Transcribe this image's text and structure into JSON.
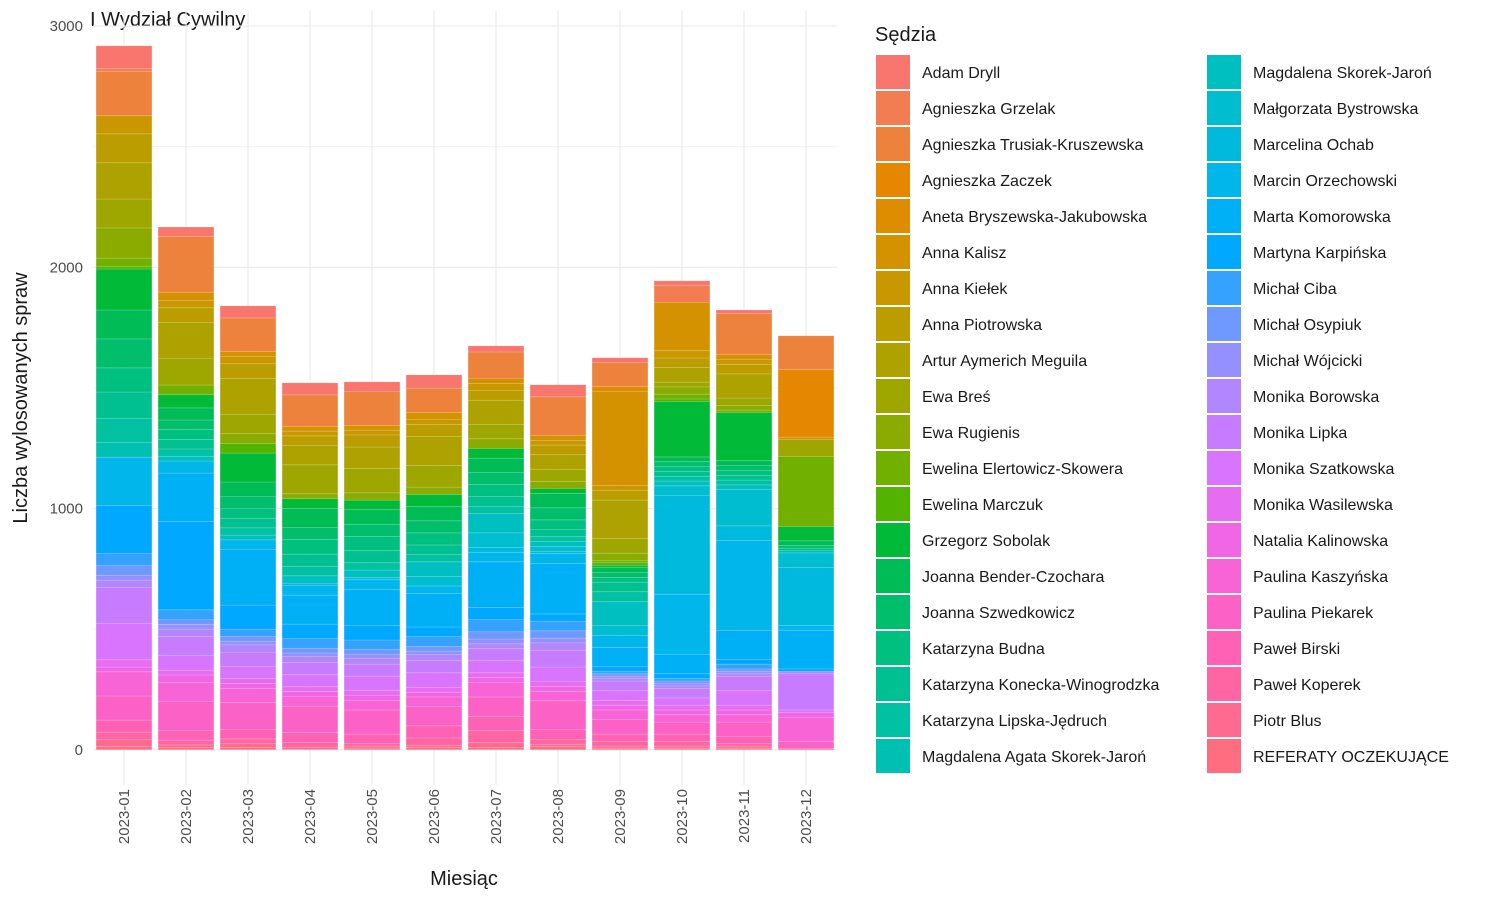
{
  "chart_data": {
    "type": "bar",
    "stacked": true,
    "title": "I Wydział Cywilny",
    "x_label": "Miesiąc",
    "y_label": "Liczba wylosowanych spraw",
    "legend_title": "Sędzia",
    "legend": "right",
    "grid": true,
    "ylim": [
      -146,
      3064
    ],
    "yticks": [
      0,
      1000,
      2000,
      3000
    ],
    "categories": [
      "2023-01",
      "2023-02",
      "2023-03",
      "2023-04",
      "2023-05",
      "2023-06",
      "2023-07",
      "2023-08",
      "2023-09",
      "2023-10",
      "2023-11",
      "2023-12"
    ],
    "series": [
      {
        "name": "Adam Dryll",
        "color": "#F8766D",
        "values": [
          95,
          40,
          50,
          50,
          40,
          55,
          25,
          50,
          20,
          20,
          15,
          0
        ]
      },
      {
        "name": "Agnieszka Grzelak",
        "color": "#F27D52",
        "values": [
          10,
          0,
          0,
          0,
          0,
          0,
          0,
          0,
          0,
          70,
          0,
          0
        ]
      },
      {
        "name": "Agnieszka Trusiak-Kruszewska",
        "color": "#EC823C",
        "values": [
          185,
          230,
          140,
          130,
          140,
          100,
          110,
          160,
          100,
          0,
          170,
          140
        ]
      },
      {
        "name": "Agnieszka Zaczek",
        "color": "#E58700",
        "values": [
          0,
          0,
          0,
          0,
          0,
          0,
          0,
          0,
          0,
          0,
          0,
          280
        ]
      },
      {
        "name": "Aneta Bryszewska-Jakubowska",
        "color": "#DE8C00",
        "values": [
          0,
          0,
          0,
          0,
          0,
          0,
          0,
          0,
          20,
          0,
          0,
          0
        ]
      },
      {
        "name": "Anna Kalisz",
        "color": "#D49200",
        "values": [
          0,
          35,
          20,
          20,
          20,
          30,
          20,
          20,
          390,
          200,
          20,
          10
        ]
      },
      {
        "name": "Anna Kiełek",
        "color": "#C99800",
        "values": [
          75,
          30,
          30,
          20,
          20,
          20,
          30,
          20,
          20,
          30,
          20,
          0
        ]
      },
      {
        "name": "Anna Piotrowska",
        "color": "#BB9D00",
        "values": [
          120,
          60,
          60,
          40,
          50,
          50,
          40,
          40,
          40,
          40,
          40,
          0
        ]
      },
      {
        "name": "Artur Aymerich Meguila",
        "color": "#ADA200",
        "values": [
          150,
          150,
          150,
          80,
          90,
          120,
          100,
          60,
          160,
          60,
          100,
          0
        ]
      },
      {
        "name": "Ewa Breś",
        "color": "#9DA700",
        "values": [
          120,
          110,
          80,
          120,
          100,
          90,
          60,
          50,
          60,
          20,
          30,
          70
        ]
      },
      {
        "name": "Ewa Rugienis",
        "color": "#8BAB00",
        "values": [
          125,
          0,
          40,
          20,
          30,
          30,
          40,
          30,
          30,
          30,
          20,
          0
        ]
      },
      {
        "name": "Ewelina Elertowicz-Skowera",
        "color": "#72B000",
        "values": [
          35,
          40,
          0,
          0,
          0,
          0,
          0,
          0,
          10,
          20,
          10,
          290
        ]
      },
      {
        "name": "Ewelina Marczuk",
        "color": "#53B400",
        "values": [
          10,
          0,
          40,
          0,
          0,
          0,
          0,
          0,
          10,
          10,
          0,
          0
        ]
      },
      {
        "name": "Grzegorz Sobolak",
        "color": "#00BA38",
        "values": [
          170,
          55,
          120,
          40,
          40,
          50,
          40,
          20,
          10,
          230,
          200,
          60
        ]
      },
      {
        "name": "Joanna Bender-Czochara",
        "color": "#00BC56",
        "values": [
          120,
          50,
          60,
          80,
          60,
          60,
          60,
          60,
          20,
          20,
          20,
          20
        ]
      },
      {
        "name": "Joanna Szwedkowicz",
        "color": "#00BE6C",
        "values": [
          120,
          40,
          50,
          50,
          50,
          50,
          50,
          50,
          20,
          20,
          20,
          10
        ]
      },
      {
        "name": "Katarzyna Budna",
        "color": "#00C07F",
        "values": [
          100,
          40,
          40,
          60,
          60,
          50,
          50,
          40,
          20,
          20,
          20,
          10
        ]
      },
      {
        "name": "Katarzyna Konecka-Winogrodzka",
        "color": "#00C091",
        "values": [
          110,
          40,
          40,
          50,
          50,
          40,
          40,
          30,
          40,
          20,
          20,
          0
        ]
      },
      {
        "name": "Katarzyna Lipska-Jędruch",
        "color": "#00C1A2",
        "values": [
          100,
          30,
          30,
          40,
          30,
          30,
          30,
          20,
          40,
          20,
          20,
          0
        ]
      },
      {
        "name": "Magdalena Agata Skorek-Jaroń",
        "color": "#00C0B2",
        "values": [
          60,
          0,
          0,
          0,
          0,
          0,
          0,
          0,
          0,
          0,
          0,
          0
        ]
      },
      {
        "name": "Magdalena Skorek-Jaroń",
        "color": "#00BFC1",
        "values": [
          0,
          20,
          20,
          30,
          30,
          60,
          80,
          20,
          100,
          20,
          20,
          10
        ]
      },
      {
        "name": "Małgorzata Bystrowska",
        "color": "#00BDD0",
        "values": [
          0,
          0,
          0,
          0,
          0,
          40,
          60,
          20,
          40,
          40,
          150,
          60
        ]
      },
      {
        "name": "Marcelina Ochab",
        "color": "#00BADE",
        "values": [
          0,
          0,
          0,
          10,
          10,
          0,
          20,
          10,
          0,
          409,
          60,
          240
        ]
      },
      {
        "name": "Marcin Orzechowski",
        "color": "#00B6EA",
        "values": [
          200,
          50,
          40,
          40,
          40,
          30,
          40,
          40,
          50,
          250,
          373,
          20
        ]
      },
      {
        "name": "Marta Komorowska",
        "color": "#00B0F6",
        "values": [
          0,
          200,
          230,
          120,
          150,
          140,
          190,
          210,
          80,
          80,
          120,
          161
        ]
      },
      {
        "name": "Martyna Karpińska",
        "color": "#00A9FF",
        "values": [
          200,
          367,
          100,
          60,
          60,
          40,
          50,
          30,
          20,
          20,
          20,
          10
        ]
      },
      {
        "name": "Michał Ciba",
        "color": "#35A2FF",
        "values": [
          50,
          40,
          30,
          40,
          40,
          40,
          50,
          40,
          10,
          10,
          20,
          0
        ]
      },
      {
        "name": "Michał Osypiuk",
        "color": "#7099FF",
        "values": [
          40,
          20,
          20,
          20,
          20,
          20,
          30,
          30,
          10,
          10,
          10,
          0
        ]
      },
      {
        "name": "Michał Wójcicki",
        "color": "#9590FF",
        "values": [
          20,
          20,
          15,
          15,
          15,
          15,
          20,
          20,
          10,
          10,
          10,
          0
        ]
      },
      {
        "name": "Monika Borowska",
        "color": "#B186FF",
        "values": [
          30,
          30,
          30,
          25,
          25,
          25,
          20,
          30,
          10,
          10,
          10,
          10
        ]
      },
      {
        "name": "Monika Lipka",
        "color": "#C77CFF",
        "values": [
          150,
          80,
          60,
          50,
          50,
          50,
          50,
          70,
          40,
          40,
          60,
          150
        ]
      },
      {
        "name": "Monika Szatkowska",
        "color": "#D874FD",
        "values": [
          150,
          60,
          50,
          50,
          60,
          60,
          50,
          60,
          40,
          30,
          60,
          10
        ]
      },
      {
        "name": "Monika Wasilewska",
        "color": "#E66CF2",
        "values": [
          30,
          20,
          20,
          20,
          20,
          20,
          20,
          20,
          20,
          20,
          20,
          0
        ]
      },
      {
        "name": "Natalia Kalinowska",
        "color": "#F066E5",
        "values": [
          20,
          30,
          20,
          20,
          20,
          20,
          20,
          20,
          20,
          20,
          20,
          20
        ]
      },
      {
        "name": "Paulina Kaszyńska",
        "color": "#F863D5",
        "values": [
          100,
          80,
          60,
          40,
          40,
          40,
          60,
          40,
          40,
          30,
          30,
          100
        ]
      },
      {
        "name": "Paulina Piekarek",
        "color": "#FC62C5",
        "values": [
          100,
          120,
          110,
          110,
          100,
          80,
          80,
          120,
          60,
          50,
          60,
          30
        ]
      },
      {
        "name": "Paweł Birski",
        "color": "#FF62B4",
        "values": [
          50,
          40,
          40,
          40,
          40,
          50,
          60,
          40,
          30,
          30,
          30,
          0
        ]
      },
      {
        "name": "Paweł Koperek",
        "color": "#FF65A2",
        "values": [
          30,
          20,
          20,
          20,
          10,
          30,
          50,
          20,
          20,
          20,
          10,
          0
        ]
      },
      {
        "name": "Piotr Blus",
        "color": "#FF6A90",
        "values": [
          30,
          10,
          15,
          10,
          10,
          10,
          20,
          10,
          10,
          10,
          10,
          0
        ]
      },
      {
        "name": "REFERATY OCZEKUJĄCE",
        "color": "#FE6E80",
        "values": [
          13,
          10,
          10,
          1,
          5,
          9,
          9,
          13,
          5,
          5,
          5,
          5
        ]
      }
    ]
  }
}
